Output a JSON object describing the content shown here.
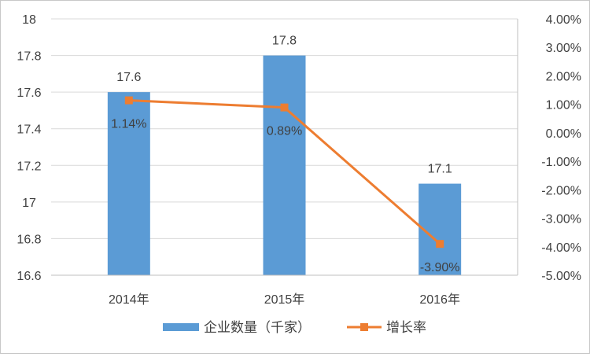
{
  "chart_data": {
    "type": "bar+line",
    "categories": [
      "2014年",
      "2015年",
      "2016年"
    ],
    "series": [
      {
        "name": "企业数量（千家）",
        "type": "bar",
        "axis": "left",
        "values": [
          17.6,
          17.8,
          17.1
        ],
        "labels": [
          "17.6",
          "17.8",
          "17.1"
        ],
        "color": "#5b9bd5"
      },
      {
        "name": "增长率",
        "type": "line",
        "axis": "right",
        "values": [
          1.14,
          0.89,
          -3.9
        ],
        "labels": [
          "1.14%",
          "0.89%",
          "-3.90%"
        ],
        "color": "#ed7d31"
      }
    ],
    "left_axis": {
      "min": 16.6,
      "max": 18,
      "step": 0.2,
      "ticks": [
        "16.6",
        "16.8",
        "17",
        "17.2",
        "17.4",
        "17.6",
        "17.8",
        "18"
      ]
    },
    "right_axis": {
      "min": -5,
      "max": 4,
      "step": 1,
      "ticks": [
        "-5.00%",
        "-4.00%",
        "-3.00%",
        "-2.00%",
        "-1.00%",
        "0.00%",
        "1.00%",
        "2.00%",
        "3.00%",
        "4.00%"
      ]
    },
    "grid": true,
    "legend_position": "bottom"
  }
}
